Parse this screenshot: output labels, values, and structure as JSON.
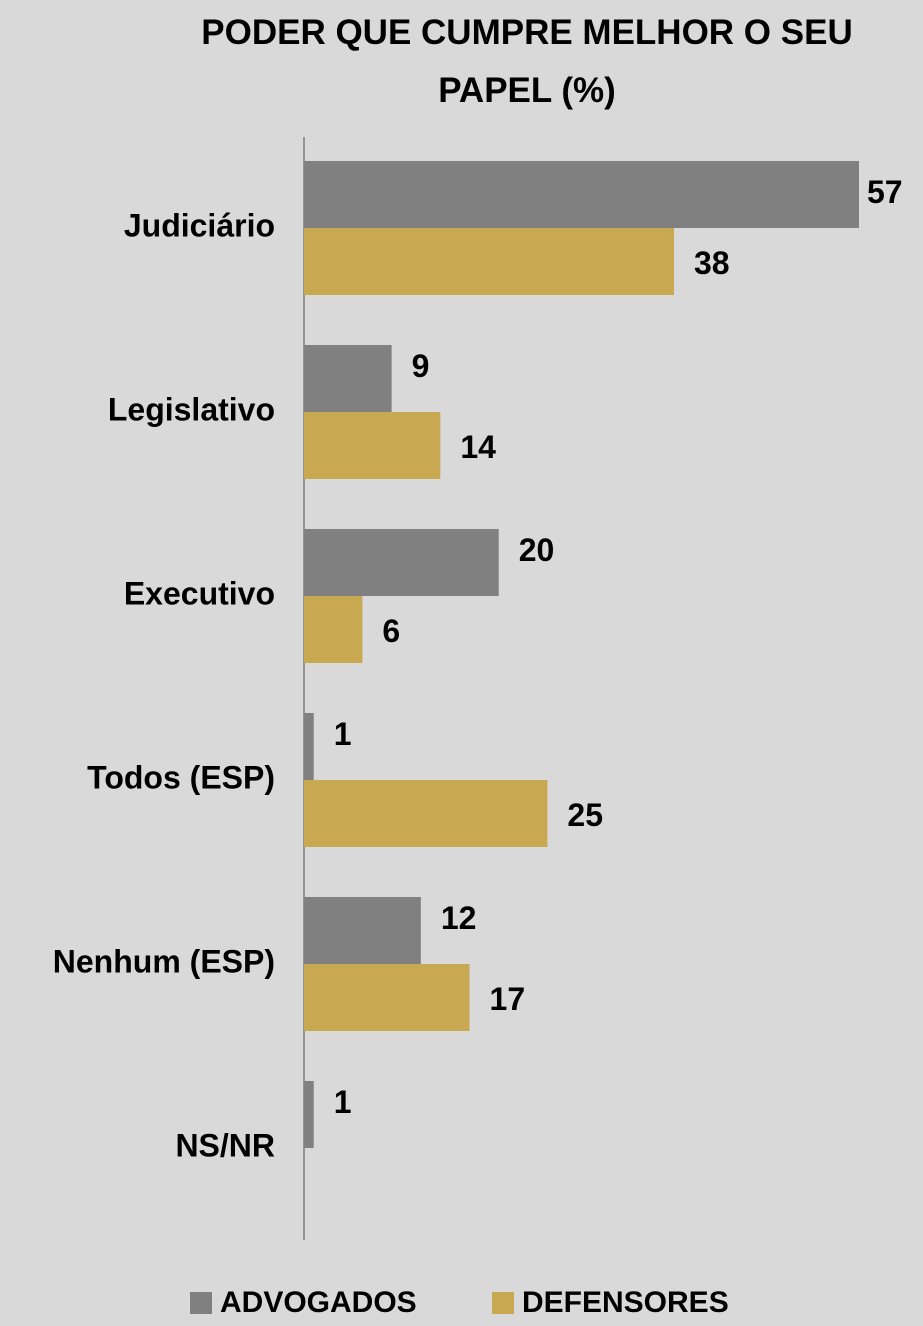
{
  "chart_data": {
    "type": "bar",
    "orientation": "horizontal",
    "title": "PODER QUE CUMPRE MELHOR O SEU PAPEL (%)",
    "categories": [
      "Judiciário",
      "Legislativo",
      "Executivo",
      "Todos (ESP)",
      "Nenhum (ESP)",
      "NS/NR"
    ],
    "series": [
      {
        "name": "ADVOGADOS",
        "color": "#808080",
        "values": [
          57,
          9,
          20,
          1,
          12,
          1
        ]
      },
      {
        "name": "DEFENSORES",
        "color": "#c9a852",
        "values": [
          38,
          14,
          6,
          25,
          17,
          null
        ]
      }
    ],
    "xlim": [
      0,
      57
    ],
    "legend": "bottom"
  }
}
